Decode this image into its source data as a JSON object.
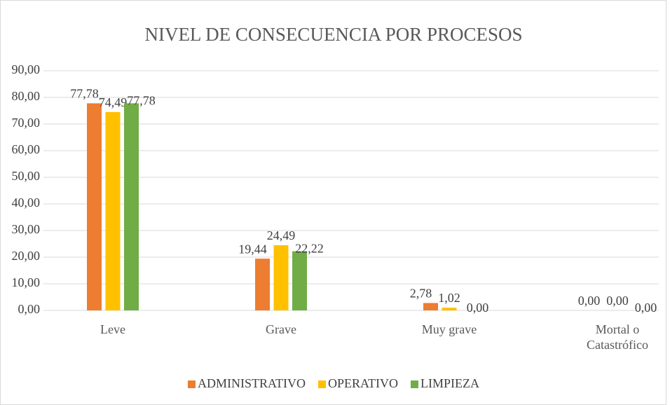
{
  "chart_data": {
    "type": "bar",
    "title": "NIVEL DE CONSECUENCIA POR PROCESOS",
    "categories": [
      "Leve",
      "Grave",
      "Muy grave",
      "Mortal o Catastrófico"
    ],
    "series": [
      {
        "name": "ADMINISTRATIVO",
        "color": "#ed7d31",
        "values": [
          77.78,
          19.44,
          2.78,
          0
        ],
        "value_labels": [
          "77,78",
          "19,44",
          "2,78",
          "0,00"
        ]
      },
      {
        "name": "OPERATIVO",
        "color": "#ffc000",
        "values": [
          74.49,
          24.49,
          1.02,
          0
        ],
        "value_labels": [
          "74,49",
          "24,49",
          "1,02",
          "0,00"
        ]
      },
      {
        "name": "LIMPIEZA",
        "color": "#70ad47",
        "values": [
          77.78,
          22.22,
          0,
          0
        ],
        "value_labels": [
          "77,78",
          "22,22",
          "0,00",
          "0,00"
        ]
      }
    ],
    "ylim": [
      0,
      90
    ],
    "yticks": [
      {
        "value": 0,
        "label": "0,00"
      },
      {
        "value": 10,
        "label": "10,00"
      },
      {
        "value": 20,
        "label": "20,00"
      },
      {
        "value": 30,
        "label": "30,00"
      },
      {
        "value": 40,
        "label": "40,00"
      },
      {
        "value": 50,
        "label": "50,00"
      },
      {
        "value": 60,
        "label": "60,00"
      },
      {
        "value": 70,
        "label": "70,00"
      },
      {
        "value": 80,
        "label": "80,00"
      },
      {
        "value": 90,
        "label": "90,00"
      }
    ],
    "grid": true,
    "legend": "bottom"
  }
}
